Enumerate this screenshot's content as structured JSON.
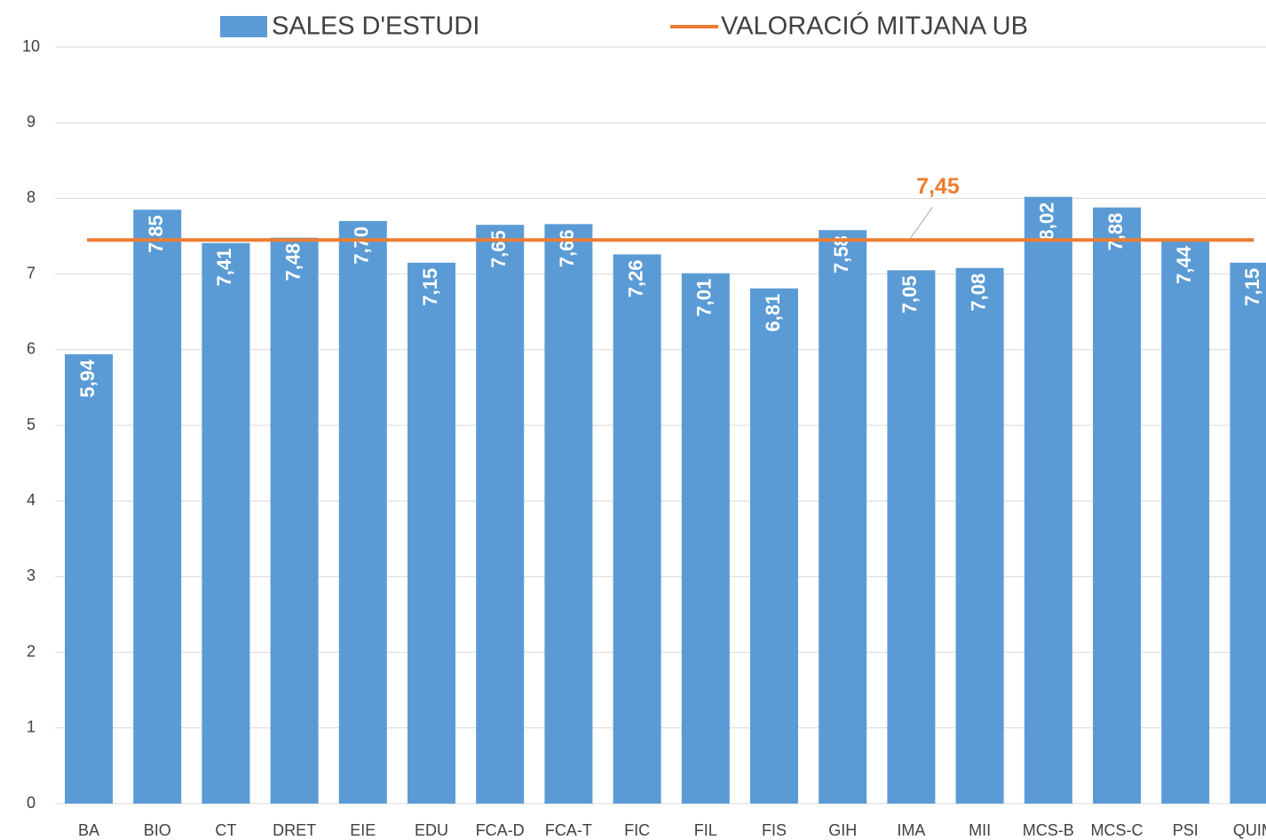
{
  "chart_data": {
    "type": "bar",
    "categories": [
      "BA",
      "BIO",
      "CT",
      "DRET",
      "EIE",
      "EDU",
      "FCA-D",
      "FCA-T",
      "FIC",
      "FIL",
      "FIS",
      "GIH",
      "IMA",
      "MII",
      "MCS-B",
      "MCS-C",
      "PSI",
      "QUIM"
    ],
    "series": [
      {
        "name": "SALES D'ESTUDI",
        "type": "bar",
        "color": "#5b9bd5",
        "values": [
          5.94,
          7.85,
          7.41,
          7.48,
          7.7,
          7.15,
          7.65,
          7.66,
          7.26,
          7.01,
          6.81,
          7.58,
          7.05,
          7.08,
          8.02,
          7.88,
          7.44,
          7.15
        ],
        "value_labels": [
          "5,94",
          "7,85",
          "7,41",
          "7,48",
          "7,70",
          "7,15",
          "7,65",
          "7,66",
          "7,26",
          "7,01",
          "6,81",
          "7,58",
          "7,05",
          "7,08",
          "8,02",
          "7,88",
          "7,44",
          "7,15"
        ]
      },
      {
        "name": "VALORACIÓ MITJANA UB",
        "type": "line",
        "color": "#ed7d31",
        "values": [
          7.45,
          7.45,
          7.45,
          7.45,
          7.45,
          7.45,
          7.45,
          7.45,
          7.45,
          7.45,
          7.45,
          7.45,
          7.45,
          7.45,
          7.45,
          7.45,
          7.45,
          7.45
        ],
        "value_labels": [
          null,
          null,
          null,
          null,
          null,
          null,
          null,
          null,
          null,
          null,
          null,
          null,
          "7,45",
          null,
          null,
          null,
          null,
          null
        ]
      }
    ],
    "ylim": [
      0,
      10
    ],
    "yticks": [
      0,
      1,
      2,
      3,
      4,
      5,
      6,
      7,
      8,
      9,
      10
    ],
    "grid": true,
    "legend": "top"
  }
}
